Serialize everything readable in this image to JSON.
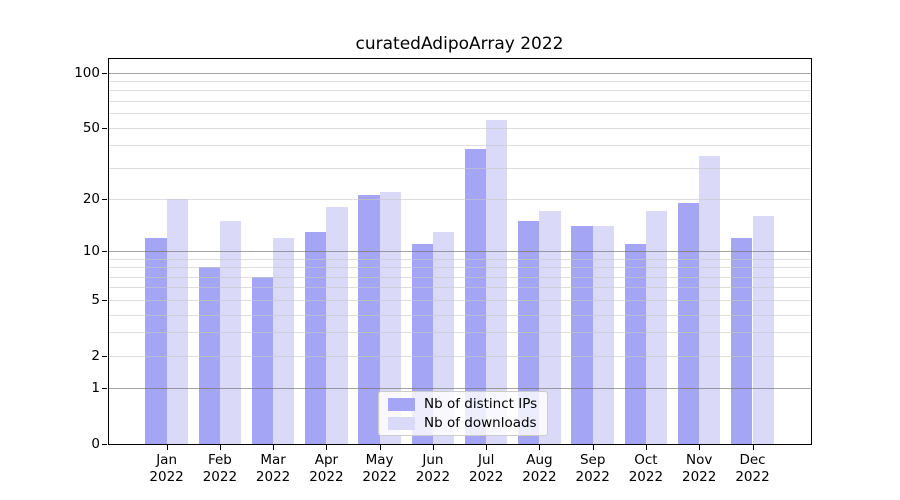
{
  "title": "curatedAdipoArray 2022",
  "chart_data": {
    "type": "bar",
    "title": "curatedAdipoArray 2022",
    "categories": [
      "Jan 2022",
      "Feb 2022",
      "Mar 2022",
      "Apr 2022",
      "May 2022",
      "Jun 2022",
      "Jul 2022",
      "Aug 2022",
      "Sep 2022",
      "Oct 2022",
      "Nov 2022",
      "Dec 2022"
    ],
    "x_ticks": [
      {
        "month": "Jan",
        "year": "2022"
      },
      {
        "month": "Feb",
        "year": "2022"
      },
      {
        "month": "Mar",
        "year": "2022"
      },
      {
        "month": "Apr",
        "year": "2022"
      },
      {
        "month": "May",
        "year": "2022"
      },
      {
        "month": "Jun",
        "year": "2022"
      },
      {
        "month": "Jul",
        "year": "2022"
      },
      {
        "month": "Aug",
        "year": "2022"
      },
      {
        "month": "Sep",
        "year": "2022"
      },
      {
        "month": "Oct",
        "year": "2022"
      },
      {
        "month": "Nov",
        "year": "2022"
      },
      {
        "month": "Dec",
        "year": "2022"
      }
    ],
    "series": [
      {
        "name": "Nb of distinct IPs",
        "color": "#a5a5f5",
        "values": [
          12,
          8,
          7,
          13,
          21,
          11,
          38,
          15,
          14,
          11,
          19,
          12
        ]
      },
      {
        "name": "Nb of downloads",
        "color": "#dadaf8",
        "values": [
          20,
          15,
          12,
          18,
          22,
          13,
          55,
          17,
          14,
          17,
          35,
          16
        ]
      }
    ],
    "yscale": "log1p",
    "ylim": [
      0,
      120
    ],
    "y_axis": {
      "tick_values": [
        100,
        50,
        20,
        10,
        5,
        2,
        1,
        0
      ],
      "tick_labels": [
        "100",
        "50",
        "20",
        "10",
        "5",
        "2",
        "1",
        "0"
      ]
    },
    "grid": true,
    "y_major_gridlines": [
      1,
      10,
      100
    ],
    "y_minor_gridlines": [
      2,
      3,
      4,
      5,
      6,
      7,
      8,
      9,
      20,
      30,
      40,
      50,
      60,
      70,
      80,
      90
    ],
    "legend_position": "lower center",
    "xlabel": "",
    "ylabel": ""
  },
  "legend": {
    "items": [
      {
        "label": "Nb of distinct IPs",
        "color": "#a5a5f5"
      },
      {
        "label": "Nb of downloads",
        "color": "#dadaf8"
      }
    ]
  },
  "colors": {
    "background": "#ffffff",
    "spine": "#000000",
    "major_grid": "#b0b0b0",
    "minor_grid": "#e6e6e6",
    "bar_ips": "#a5a5f5",
    "bar_downloads": "#dadaf8"
  }
}
